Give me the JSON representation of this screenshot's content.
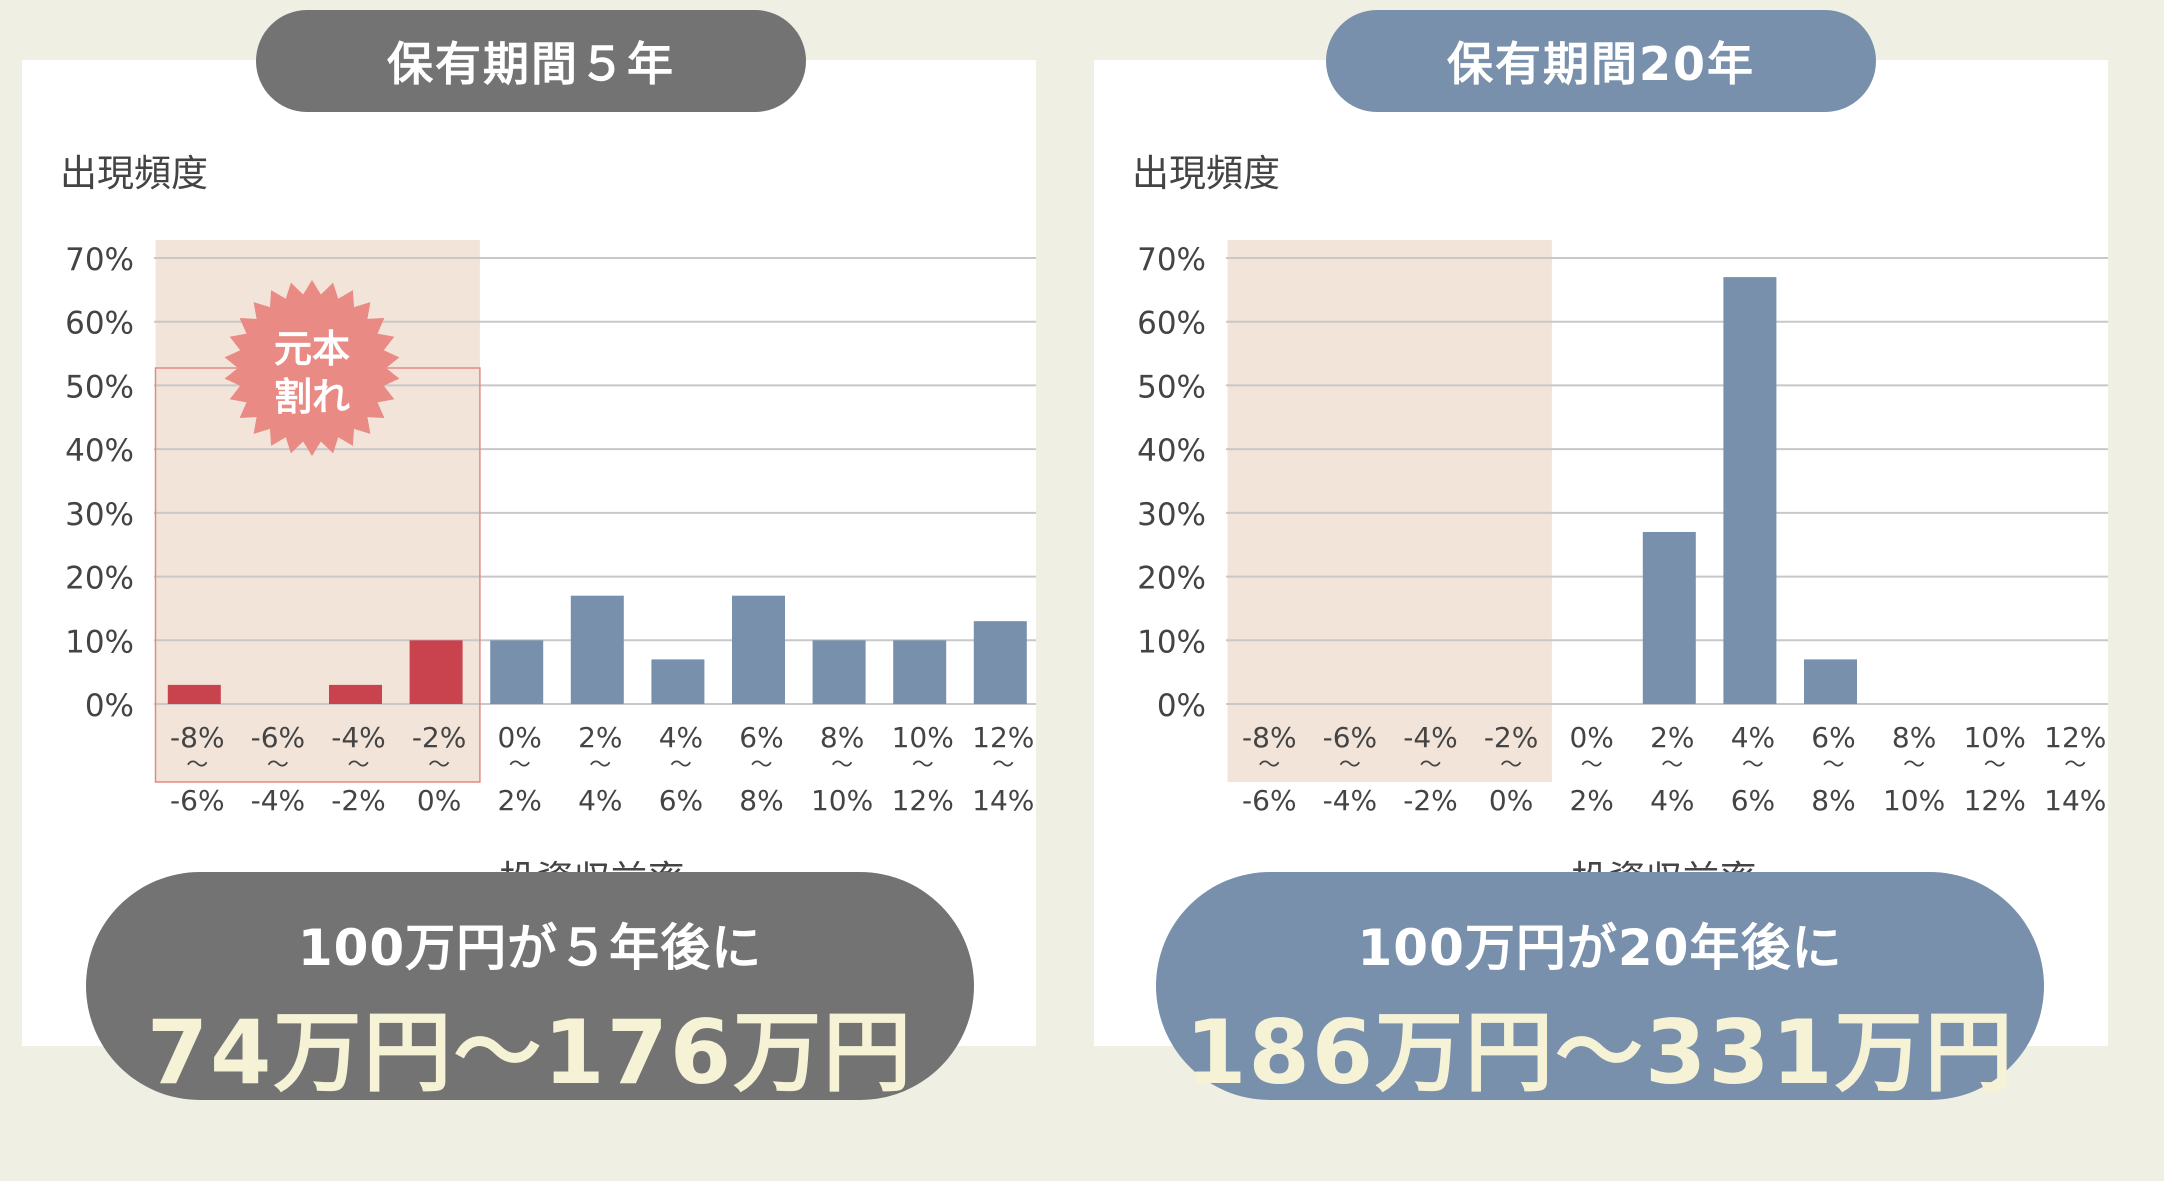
{
  "colors": {
    "bar": "#7890ab",
    "loss_bar": "#c9434f",
    "loss_zone": "#f2e4d8",
    "burst": "#e98a84",
    "grid": "#c8c8c8",
    "text": "#444444"
  },
  "chart_data": [
    {
      "type": "bar",
      "title": "保有期間５年",
      "ylabel": "出現頻度",
      "xlabel": "投資収益率",
      "ylim": [
        0,
        70
      ],
      "yticks": [
        "0%",
        "10%",
        "20%",
        "30%",
        "40%",
        "50%",
        "60%",
        "70%"
      ],
      "categories": [
        {
          "top": "-8%",
          "bottom": "-6%"
        },
        {
          "top": "-6%",
          "bottom": "-4%"
        },
        {
          "top": "-4%",
          "bottom": "-2%"
        },
        {
          "top": "-2%",
          "bottom": "0%"
        },
        {
          "top": "0%",
          "bottom": "2%"
        },
        {
          "top": "2%",
          "bottom": "4%"
        },
        {
          "top": "4%",
          "bottom": "6%"
        },
        {
          "top": "6%",
          "bottom": "8%"
        },
        {
          "top": "8%",
          "bottom": "10%"
        },
        {
          "top": "10%",
          "bottom": "12%"
        },
        {
          "top": "12%",
          "bottom": "14%"
        }
      ],
      "values": [
        3,
        0,
        3,
        10,
        10,
        17,
        7,
        17,
        10,
        10,
        13
      ],
      "loss_categories": 4,
      "annotation": [
        "元本",
        "割れ"
      ],
      "result_line1": "100万円が５年後に",
      "result_line2": "74万円〜176万円"
    },
    {
      "type": "bar",
      "title": "保有期間20年",
      "ylabel": "出現頻度",
      "xlabel": "投資収益率",
      "ylim": [
        0,
        70
      ],
      "yticks": [
        "0%",
        "10%",
        "20%",
        "30%",
        "40%",
        "50%",
        "60%",
        "70%"
      ],
      "categories": [
        {
          "top": "-8%",
          "bottom": "-6%"
        },
        {
          "top": "-6%",
          "bottom": "-4%"
        },
        {
          "top": "-4%",
          "bottom": "-2%"
        },
        {
          "top": "-2%",
          "bottom": "0%"
        },
        {
          "top": "0%",
          "bottom": "2%"
        },
        {
          "top": "2%",
          "bottom": "4%"
        },
        {
          "top": "4%",
          "bottom": "6%"
        },
        {
          "top": "6%",
          "bottom": "8%"
        },
        {
          "top": "8%",
          "bottom": "10%"
        },
        {
          "top": "10%",
          "bottom": "12%"
        },
        {
          "top": "12%",
          "bottom": "14%"
        }
      ],
      "values": [
        0,
        0,
        0,
        0,
        0,
        27,
        67,
        7,
        0,
        0,
        0
      ],
      "loss_categories": 4,
      "result_line1": "100万円が20年後に",
      "result_line2": "186万円〜331万円"
    }
  ],
  "tilde": "〜"
}
